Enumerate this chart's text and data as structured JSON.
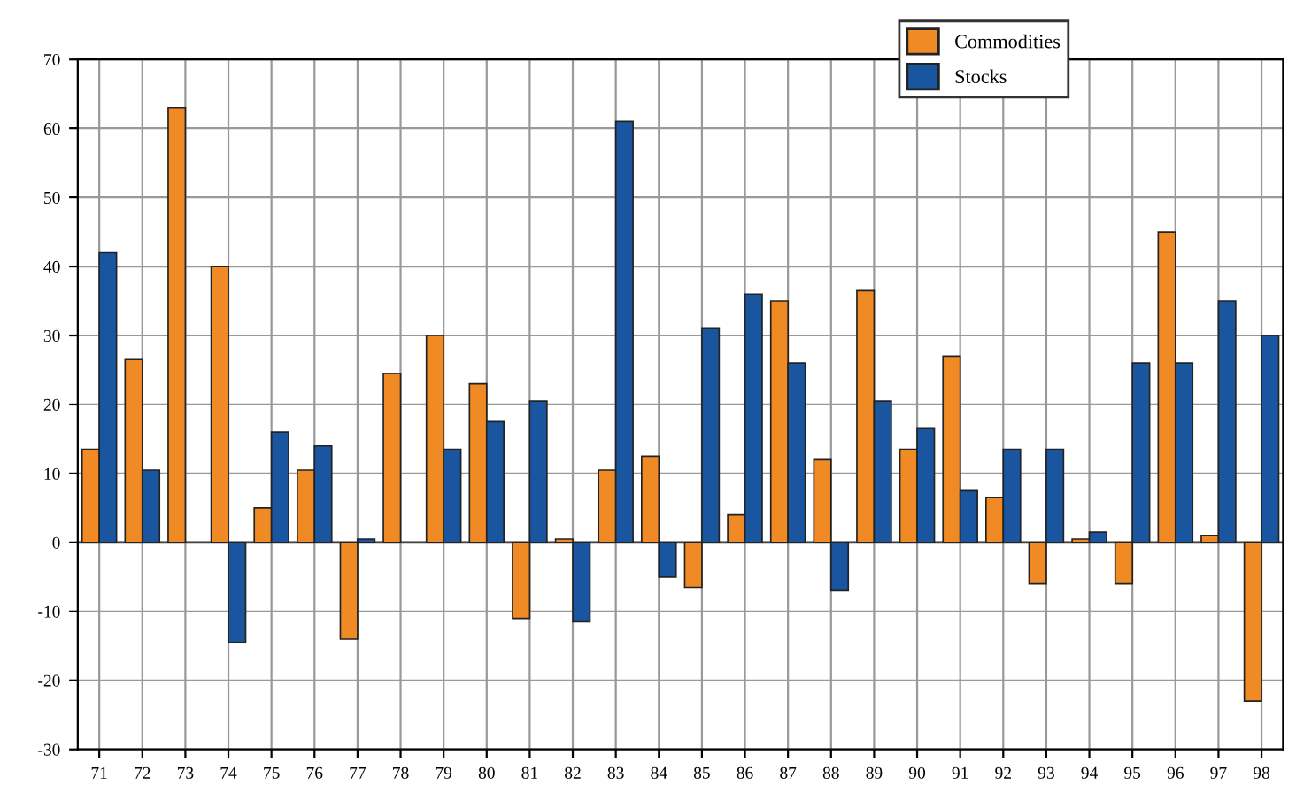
{
  "chart_data": {
    "type": "bar",
    "categories": [
      "71",
      "72",
      "73",
      "74",
      "75",
      "76",
      "77",
      "78",
      "79",
      "80",
      "81",
      "82",
      "83",
      "84",
      "85",
      "86",
      "87",
      "88",
      "89",
      "90",
      "91",
      "92",
      "93",
      "94",
      "95",
      "96",
      "97",
      "98"
    ],
    "series": [
      {
        "name": "Commodities",
        "color": "#f08a24",
        "values": [
          13.5,
          26.5,
          63,
          40,
          5,
          10.5,
          -14,
          24.5,
          30,
          23,
          -11,
          0.5,
          10.5,
          12.5,
          -6.5,
          4,
          35,
          12,
          36.5,
          13.5,
          27,
          6.5,
          -6,
          0.5,
          -6,
          45,
          1,
          -23
        ]
      },
      {
        "name": "Stocks",
        "color": "#1a55a0",
        "values": [
          42,
          10.5,
          null,
          -14.5,
          16,
          14,
          0.5,
          null,
          13.5,
          17.5,
          20.5,
          -11.5,
          61,
          -5,
          31,
          36,
          26,
          -7,
          20.5,
          16.5,
          7.5,
          13.5,
          13.5,
          1.5,
          26,
          26,
          35,
          30
        ]
      }
    ],
    "ylim": [
      -30,
      70
    ],
    "yticks": [
      -30,
      -20,
      -10,
      0,
      10,
      20,
      30,
      40,
      50,
      60,
      70
    ],
    "grid": true,
    "legend": "top right"
  }
}
